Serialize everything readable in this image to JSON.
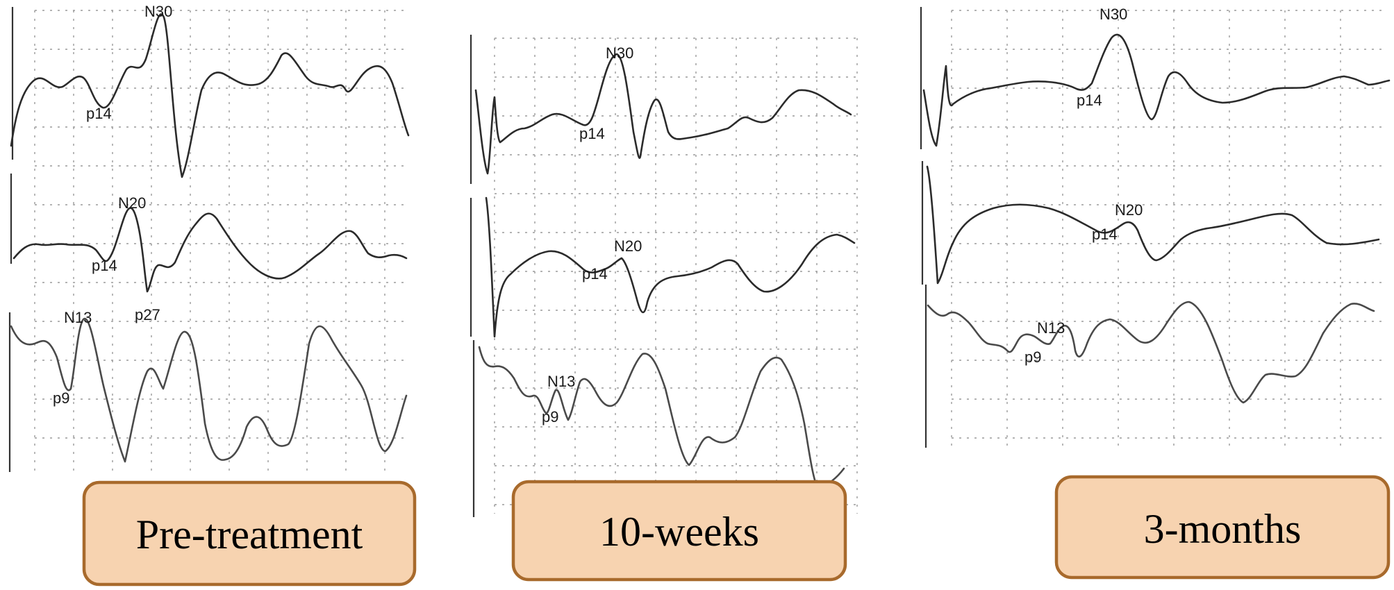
{
  "panels": [
    {
      "id": "pre",
      "label": "Pre-treatment",
      "peaks": {
        "N30": "N30",
        "p14a": "p14",
        "N20": "N20",
        "p14b": "p14",
        "p27": "p27",
        "N13": "N13",
        "p9": "p9"
      }
    },
    {
      "id": "w10",
      "label": "10-weeks",
      "peaks": {
        "N30": "N30",
        "p14a": "p14",
        "N20": "N20",
        "p14b": "p14",
        "N13": "N13",
        "p9": "p9"
      }
    },
    {
      "id": "m3",
      "label": "3-months",
      "peaks": {
        "N30": "N30",
        "p14a": "p14",
        "N20": "N20",
        "p14b": "p14",
        "N13": "N13",
        "p9": "p9"
      }
    }
  ],
  "colors": {
    "box_fill": "#f7d3b0",
    "box_border": "#a86a2c",
    "trace": "#2b2b2b",
    "grid": "#9a9a9a"
  }
}
